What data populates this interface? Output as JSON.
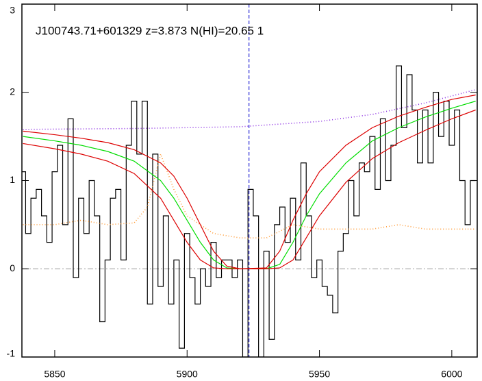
{
  "chart_data": {
    "type": "spectrum",
    "title": "J100743.71+601329 z=3.873 N(HI)=20.65 1",
    "xlim": [
      5837.6,
      6009.6
    ],
    "ylim": [
      -1,
      3
    ],
    "xticks": [
      5850,
      5900,
      5950,
      6000
    ],
    "yticks": [
      -1,
      0,
      1,
      2,
      3
    ],
    "vline": 5923.4,
    "hline": 0,
    "series": [
      {
        "style": "step",
        "color": "#000000",
        "x": [
          5838,
          5840,
          5842,
          5844,
          5846,
          5848,
          5850,
          5852,
          5854,
          5856,
          5858,
          5860,
          5862,
          5864,
          5866,
          5868,
          5870,
          5872,
          5874,
          5876,
          5878,
          5880,
          5882,
          5884,
          5886,
          5888,
          5890,
          5892,
          5894,
          5896,
          5898,
          5900,
          5902,
          5904,
          5906,
          5908,
          5910,
          5912,
          5914,
          5916,
          5918,
          5920,
          5922,
          5924,
          5926,
          5928,
          5930,
          5932,
          5934,
          5936,
          5938,
          5940,
          5942,
          5944,
          5946,
          5948,
          5950,
          5952,
          5954,
          5956,
          5958,
          5960,
          5962,
          5964,
          5966,
          5968,
          5970,
          5972,
          5974,
          5976,
          5978,
          5980,
          5982,
          5984,
          5986,
          5988,
          5990,
          5992,
          5994,
          5996,
          5998,
          6000,
          6002,
          6004,
          6006,
          6008
        ],
        "values": [
          1.1,
          0.4,
          0.8,
          0.9,
          0.6,
          0.3,
          1.1,
          1.4,
          0.5,
          1.7,
          -0.1,
          0.8,
          0.4,
          1.0,
          0.6,
          -0.6,
          0.1,
          0.8,
          0.9,
          0.1,
          1.4,
          1.9,
          1.3,
          1.9,
          -0.4,
          1.3,
          -0.2,
          0.6,
          -0.4,
          0.1,
          -0.9,
          0.4,
          -0.1,
          -0.4,
          0.0,
          -0.2,
          0.3,
          -0.1,
          0.1,
          0.1,
          -0.1,
          0.1,
          -1.0,
          0.9,
          0.6,
          -1.0,
          0.2,
          -0.8,
          0.5,
          0.7,
          0.3,
          0.8,
          0.1,
          1.2,
          0.6,
          -0.1,
          0.1,
          -0.2,
          -0.3,
          -0.5,
          0.2,
          0.4,
          1.0,
          0.6,
          1.2,
          1.1,
          1.5,
          0.9,
          1.7,
          1.0,
          1.4,
          2.3,
          1.6,
          2.2,
          1.8,
          1.2,
          1.8,
          1.2,
          2.0,
          1.5,
          1.9,
          1.4,
          1.8,
          1.0,
          0.5,
          1.0
        ]
      },
      {
        "style": "dotted",
        "color": "#ff9933",
        "x": [
          5838,
          5850,
          5860,
          5870,
          5880,
          5885,
          5890,
          5895,
          5900,
          5910,
          5920,
          5930,
          5940,
          5950,
          5960,
          5970,
          5980,
          5990,
          6000,
          6009
        ],
        "values": [
          0.5,
          0.5,
          0.55,
          0.5,
          0.52,
          0.7,
          1.3,
          0.9,
          0.6,
          0.4,
          0.35,
          0.35,
          0.5,
          0.45,
          0.45,
          0.45,
          0.5,
          0.45,
          0.45,
          0.45
        ]
      },
      {
        "style": "dotted",
        "color": "#8a2be2",
        "x": [
          5838,
          5880,
          5920,
          5950,
          5970,
          5990,
          6009
        ],
        "values": [
          1.58,
          1.59,
          1.61,
          1.67,
          1.75,
          1.88,
          2.03
        ]
      },
      {
        "style": "solid",
        "color": "#00dd00",
        "x": [
          5838,
          5850,
          5860,
          5870,
          5880,
          5890,
          5895,
          5900,
          5905,
          5910,
          5915,
          5920,
          5930,
          5935,
          5940,
          5945,
          5950,
          5960,
          5970,
          5980,
          5990,
          6000,
          6009
        ],
        "values": [
          1.5,
          1.45,
          1.4,
          1.33,
          1.22,
          1.0,
          0.8,
          0.55,
          0.3,
          0.1,
          0.01,
          0,
          0,
          0.05,
          0.3,
          0.6,
          0.85,
          1.2,
          1.45,
          1.6,
          1.72,
          1.82,
          1.9
        ]
      },
      {
        "style": "solid",
        "color": "#dd0000",
        "x": [
          5838,
          5850,
          5860,
          5870,
          5880,
          5890,
          5895,
          5900,
          5905,
          5910,
          5915,
          5920,
          5930,
          5935,
          5940,
          5945,
          5950,
          5960,
          5970,
          5980,
          5990,
          6000,
          6009
        ],
        "values": [
          1.56,
          1.52,
          1.48,
          1.43,
          1.35,
          1.2,
          1.05,
          0.8,
          0.5,
          0.2,
          0.03,
          0,
          0.01,
          0.2,
          0.55,
          0.85,
          1.1,
          1.4,
          1.6,
          1.73,
          1.83,
          1.92,
          1.97
        ]
      },
      {
        "style": "solid",
        "color": "#dd0000",
        "x": [
          5838,
          5850,
          5860,
          5870,
          5880,
          5890,
          5895,
          5900,
          5905,
          5910,
          5915,
          5920,
          5930,
          5935,
          5940,
          5945,
          5950,
          5960,
          5970,
          5980,
          5990,
          6000,
          6009
        ],
        "values": [
          1.42,
          1.36,
          1.3,
          1.22,
          1.08,
          0.8,
          0.55,
          0.3,
          0.1,
          0.01,
          0,
          0,
          0,
          0.01,
          0.1,
          0.35,
          0.6,
          0.98,
          1.25,
          1.43,
          1.57,
          1.7,
          1.8
        ]
      }
    ]
  }
}
